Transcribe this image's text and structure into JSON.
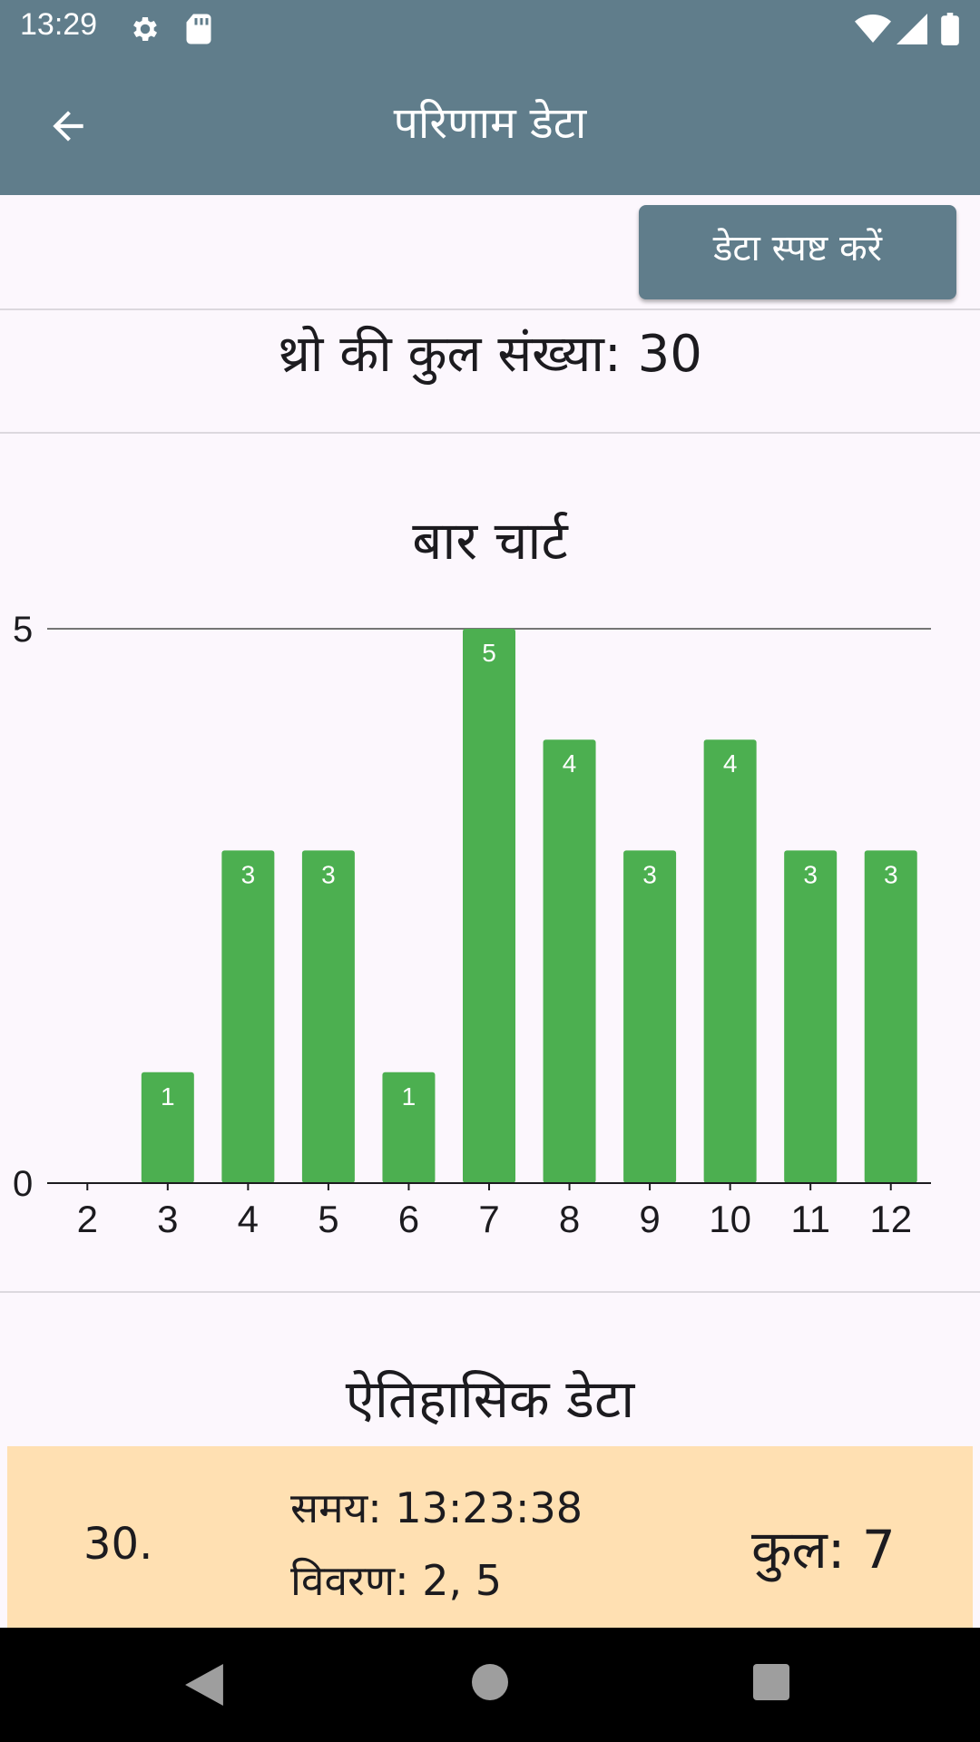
{
  "status_bar": {
    "time": "13:29",
    "icons": [
      "gear-icon",
      "sd-card-icon",
      "wifi-icon",
      "signal-icon",
      "battery-icon"
    ]
  },
  "app_bar": {
    "title": "परिणाम डेटा",
    "back_icon": "arrow-back-icon"
  },
  "toolbar": {
    "clear_label": "डेटा स्पष्ट करें"
  },
  "summary": {
    "total_throws": "थ्रो की कुल संख्या: 30"
  },
  "chart_section": {
    "title": "बार चार्ट"
  },
  "chart_data": {
    "type": "bar",
    "title": "बार चार्ट",
    "categories": [
      "2",
      "3",
      "4",
      "5",
      "6",
      "7",
      "8",
      "9",
      "10",
      "11",
      "12"
    ],
    "values": [
      0,
      1,
      3,
      3,
      1,
      5,
      4,
      3,
      4,
      3,
      3
    ],
    "ylim": [
      0,
      5
    ],
    "yticks": [
      0,
      5
    ],
    "bar_color": "#4caf50",
    "data_labels": true,
    "grid": false
  },
  "history": {
    "title": "ऐतिहासिक डेटा",
    "items": [
      {
        "index": "30.",
        "time": "समय: 13:23:38",
        "detail": "विवरण: 2, 5",
        "total": "कुल: 7"
      }
    ]
  },
  "colors": {
    "primary": "#607d8b",
    "bar": "#4caf50",
    "card": "#ffe0b2",
    "background": "#fcf7fd"
  },
  "nav_bar": {
    "icons": [
      "back-triangle-icon",
      "home-circle-icon",
      "recents-square-icon"
    ]
  }
}
